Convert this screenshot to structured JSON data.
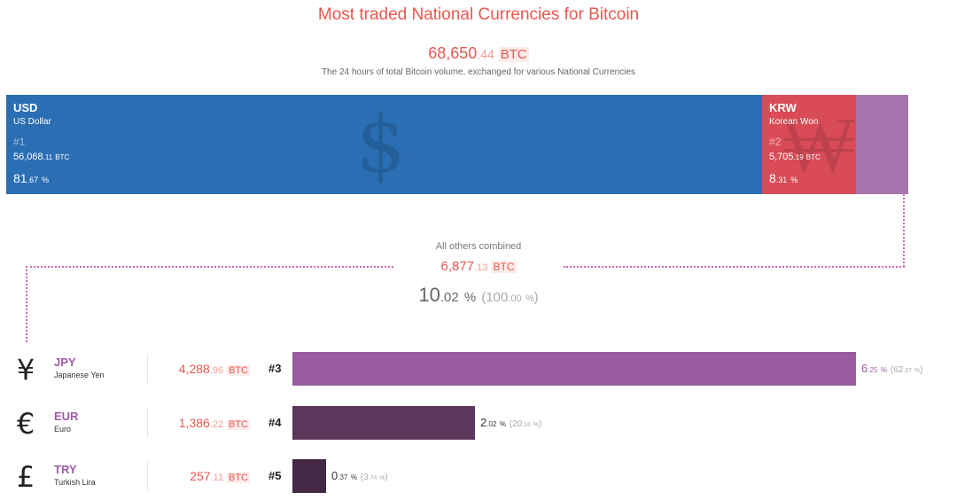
{
  "title": "Most traded National Currencies for Bitcoin",
  "total": {
    "int": "68,650",
    "dec": ".44",
    "unit": "BTC"
  },
  "subtitle": "The 24 hours of total Bitcoin volume, exchanged for various National Currencies",
  "colors": {
    "usd": "#2a6eb3",
    "krw": "#d94c57",
    "others": "#a974b0",
    "jpy": "#9a5c9e",
    "eur": "#5b375c",
    "try": "#432945",
    "accent": "#e8574f"
  },
  "top": {
    "usd": {
      "code": "USD",
      "name": "US Dollar",
      "rank": "#1",
      "vol_int": "56,068",
      "vol_dec": ".11",
      "vol_unit": "BTC",
      "pct_int": "81",
      "pct_dec": ".67",
      "pct_sym": "%",
      "symbol": "$"
    },
    "krw": {
      "code": "KRW",
      "name": "Korean Won",
      "rank": "#2",
      "vol_int": "5,705",
      "vol_dec": ".19",
      "vol_unit": "BTC",
      "pct_int": "8",
      "pct_dec": ".31",
      "pct_sym": "%",
      "symbol": "₩"
    }
  },
  "others": {
    "label": "All others combined",
    "vol_int": "6,877",
    "vol_dec": ".13",
    "vol_unit": "BTC",
    "pct_int": "10",
    "pct_dec": ".02",
    "pct_sym": "%",
    "rel_int": "100",
    "rel_dec": ".00",
    "rel_sym": "%"
  },
  "rows": [
    {
      "symbol": "¥",
      "code": "JPY",
      "name": "Japanese Yen",
      "vol_int": "4,288",
      "vol_dec": ".96",
      "vol_unit": "BTC",
      "rank": "#3",
      "pct_int": "6",
      "pct_dec": ".25",
      "pct_sym": "%",
      "rel_int": "62",
      "rel_dec": ".37",
      "rel_sym": "%"
    },
    {
      "symbol": "€",
      "code": "EUR",
      "name": "Euro",
      "vol_int": "1,386",
      "vol_dec": ".22",
      "vol_unit": "BTC",
      "rank": "#4",
      "pct_int": "2",
      "pct_dec": ".02",
      "pct_sym": "%",
      "rel_int": "20",
      "rel_dec": ".16",
      "rel_sym": "%"
    },
    {
      "symbol": "£",
      "code": "TRY",
      "name": "Turkish Lira",
      "vol_int": "257",
      "vol_dec": ".11",
      "vol_unit": "BTC",
      "rank": "#5",
      "pct_int": "0",
      "pct_dec": ".37",
      "pct_sym": "%",
      "rel_int": "3",
      "rel_dec": ".74",
      "rel_sym": "%"
    }
  ],
  "chart_data": {
    "type": "bar",
    "title": "Most traded National Currencies for Bitcoin",
    "unit": "BTC",
    "total_btc": 68650.44,
    "categories": [
      "USD",
      "KRW",
      "JPY",
      "EUR",
      "TRY",
      "All others combined"
    ],
    "values": [
      56068.11,
      5705.19,
      4288.96,
      1386.22,
      257.11,
      6877.13
    ],
    "share_of_total_pct": [
      81.67,
      8.31,
      6.25,
      2.02,
      0.37,
      10.02
    ],
    "share_of_others_pct": [
      null,
      null,
      62.37,
      20.16,
      3.74,
      100.0
    ]
  }
}
